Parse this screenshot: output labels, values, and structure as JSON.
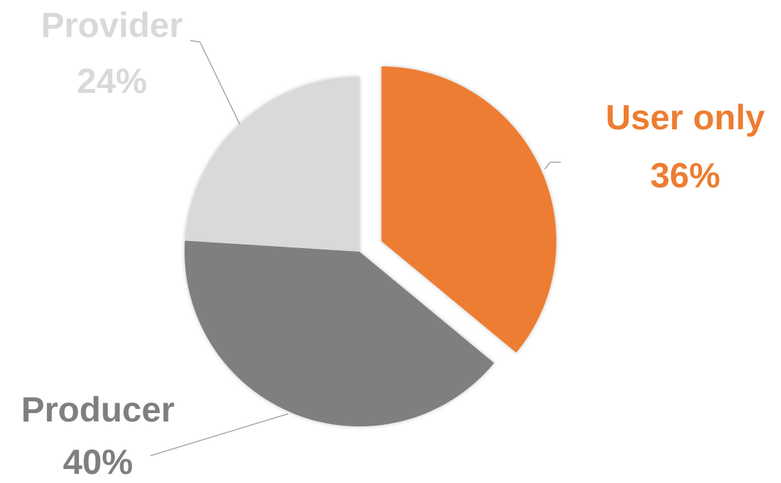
{
  "chart_data": {
    "type": "pie",
    "categories": [
      "User only",
      "Producer",
      "Provider"
    ],
    "values": [
      36,
      40,
      24
    ],
    "value_labels": [
      "36%",
      "40%",
      "24%"
    ],
    "colors": [
      "#ed7d31",
      "#7f7f7f",
      "#d9d9d9"
    ],
    "exploded": [
      true,
      false,
      false
    ]
  }
}
